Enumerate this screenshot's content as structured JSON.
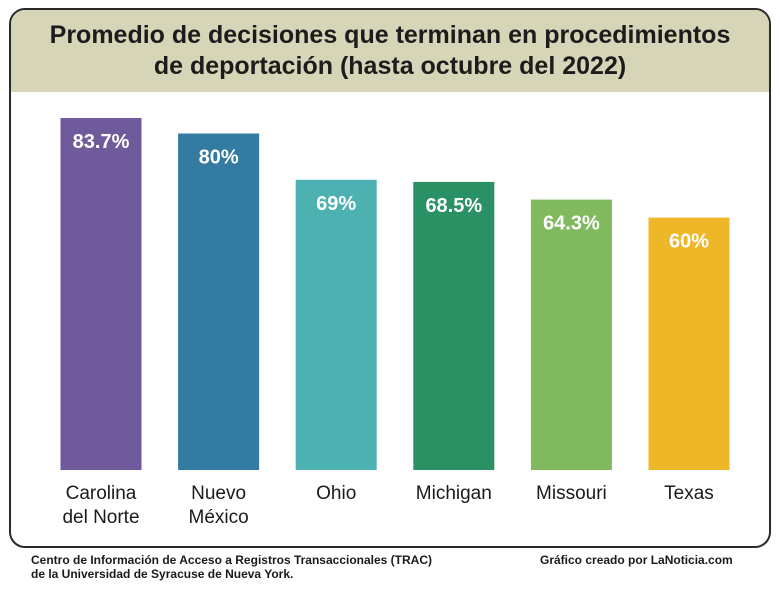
{
  "chart_data": {
    "type": "bar",
    "title": "Promedio de decisiones que terminan en procedimientos de deportación (hasta octubre del 2022)",
    "categories": [
      [
        "Carolina",
        "del Norte"
      ],
      [
        "Nuevo",
        "México"
      ],
      [
        "Ohio"
      ],
      [
        "Michigan"
      ],
      [
        "Missouri"
      ],
      [
        "Texas"
      ]
    ],
    "values": [
      83.7,
      80,
      69,
      68.5,
      64.3,
      60
    ],
    "data_labels": [
      "83.7%",
      "80%",
      "69%",
      "68.5%",
      "64.3%",
      "60%"
    ],
    "colors": [
      "#6f5a9b",
      "#347ba1",
      "#4db0b1",
      "#2a9165",
      "#80b95e",
      "#eeb727"
    ],
    "ylim": [
      0,
      100
    ],
    "grid": false,
    "legend": "none"
  },
  "footer": {
    "source_line1": "Centro de Información de Acceso a Registros Transaccionales (TRAC)",
    "source_line2": "de la Universidad de Syracuse de Nueva York.",
    "credit": "Gráfico creado por LaNoticia.com"
  }
}
